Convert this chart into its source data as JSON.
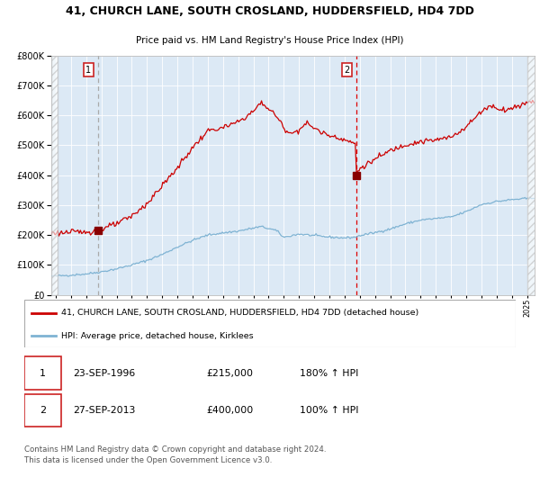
{
  "title1": "41, CHURCH LANE, SOUTH CROSLAND, HUDDERSFIELD, HD4 7DD",
  "title2": "Price paid vs. HM Land Registry's House Price Index (HPI)",
  "legend_red": "41, CHURCH LANE, SOUTH CROSLAND, HUDDERSFIELD, HD4 7DD (detached house)",
  "legend_blue": "HPI: Average price, detached house, Kirklees",
  "sale1_date": "23-SEP-1996",
  "sale1_price": "£215,000",
  "sale1_hpi": "180% ↑ HPI",
  "sale2_date": "27-SEP-2013",
  "sale2_price": "£400,000",
  "sale2_hpi": "100% ↑ HPI",
  "footer": "Contains HM Land Registry data © Crown copyright and database right 2024.\nThis data is licensed under the Open Government Licence v3.0.",
  "bg_color": "#ffffff",
  "plot_bg_color": "#dce9f5",
  "red_color": "#cc0000",
  "blue_color": "#7fb3d3",
  "marker_color": "#880000",
  "vline1_color": "#aaaaaa",
  "vline2_color": "#dd0000",
  "ylim": [
    0,
    800000
  ],
  "xlim_start": 1993.7,
  "xlim_end": 2025.5,
  "sale1_x": 1996.75,
  "sale1_y": 215000,
  "sale2_x": 2013.75,
  "sale2_y": 400000
}
